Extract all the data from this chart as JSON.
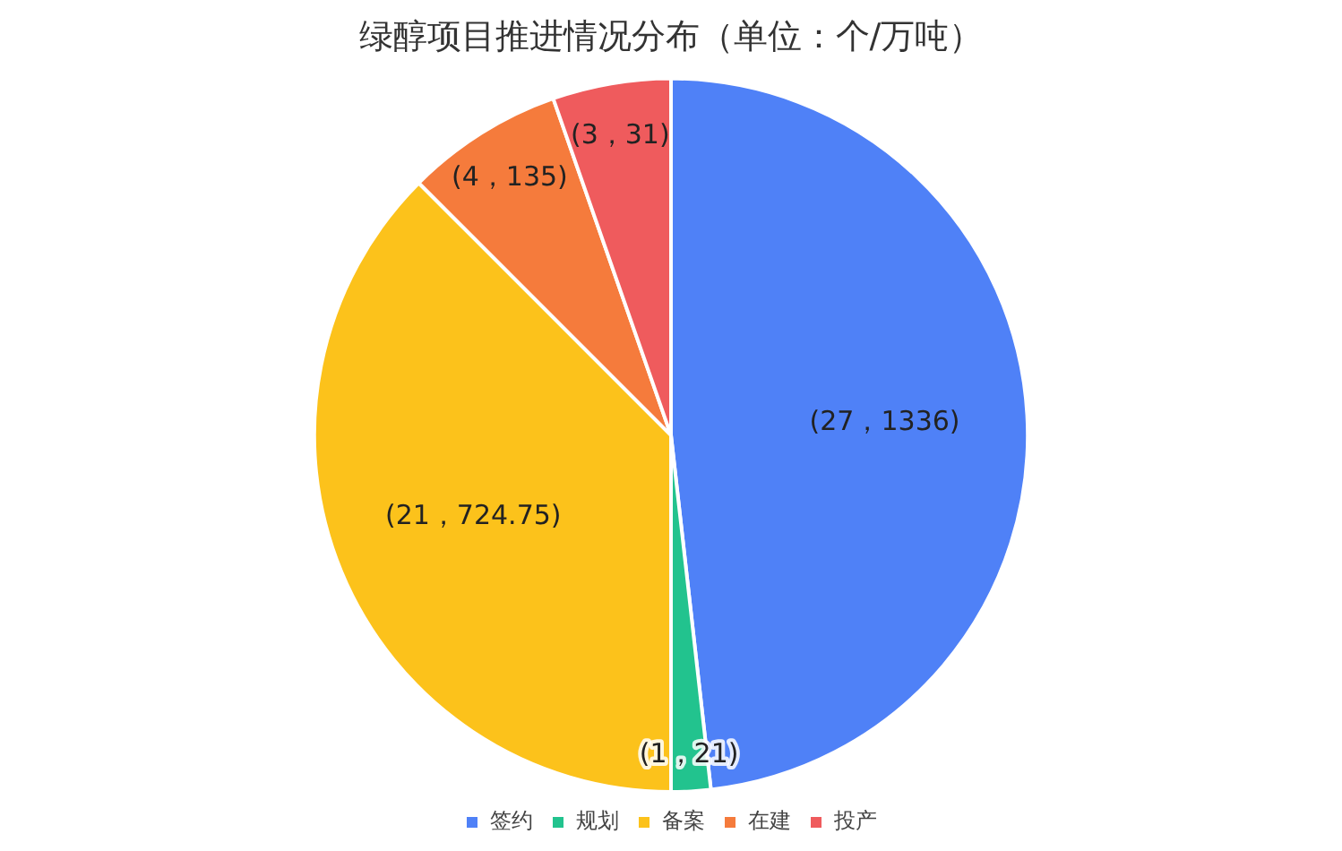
{
  "chart_data": {
    "type": "pie",
    "title": "绿醇项目推进情况分布（单位：个/万吨）",
    "categories": [
      "签约",
      "规划",
      "备案",
      "在建",
      "投产"
    ],
    "values": [
      27,
      1,
      21,
      4,
      3
    ],
    "value_labels": [
      "(27，1336)",
      "(1，21)",
      "(21，724.75)",
      "(4，135)",
      "(3，31)"
    ],
    "colors": [
      "#4f81f7",
      "#22c38e",
      "#fcc21b",
      "#f57b3c",
      "#ef5b5d"
    ],
    "legend": "bottom"
  }
}
